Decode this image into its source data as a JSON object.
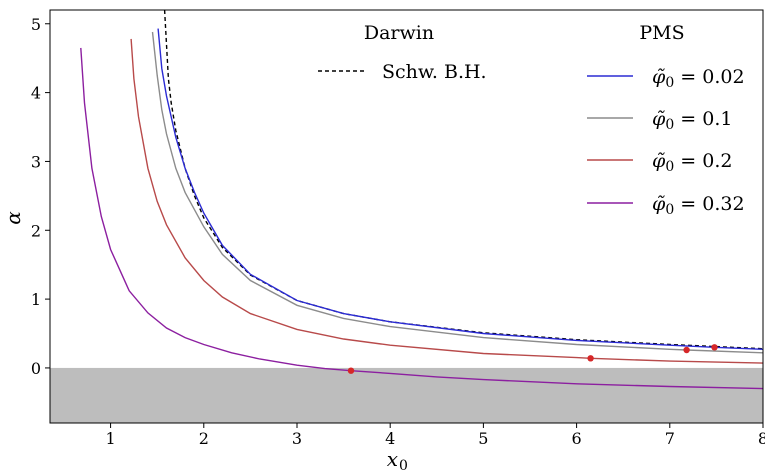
{
  "chart_data": {
    "type": "line",
    "xlabel": "x",
    "xlabel_sub": "0",
    "ylabel": "α",
    "xlim": [
      0.35,
      8.0
    ],
    "ylim": [
      -0.8,
      5.2
    ],
    "xticks": [
      "1",
      "2",
      "3",
      "4",
      "5",
      "6",
      "7",
      "8"
    ],
    "xtick_values": [
      1,
      2,
      3,
      4,
      5,
      6,
      7,
      8
    ],
    "yticks": [
      "0",
      "1",
      "2",
      "3",
      "4",
      "5"
    ],
    "ytick_values": [
      0,
      1,
      2,
      3,
      4,
      5
    ],
    "shaded_region": {
      "y_from": -0.8,
      "y_to": 0,
      "color": "#bdbdbd"
    },
    "grid": false,
    "legend_darwin": {
      "title": "Darwin",
      "placement": "top-center",
      "entries": [
        {
          "label": "Schw. B.H.",
          "color": "#000000",
          "style": "dashed"
        }
      ]
    },
    "legend_pms": {
      "title": "PMS",
      "placement": "top-right",
      "entries": [
        {
          "label": "φ̃",
          "sub": "0",
          "value": " = 0.02",
          "color": "#2b2bd4"
        },
        {
          "label": "φ̃",
          "sub": "0",
          "value": " = 0.1",
          "color": "#8c8c8c"
        },
        {
          "label": "φ̃",
          "sub": "0",
          "value": " = 0.2",
          "color": "#b84a4a"
        },
        {
          "label": "φ̃",
          "sub": "0",
          "value": " = 0.32",
          "color": "#8c1fa0"
        }
      ]
    },
    "series": [
      {
        "color": "#000000",
        "style": "dashed",
        "x": [
          1.58,
          1.62,
          1.65,
          1.7,
          1.8,
          1.9,
          2.0,
          2.2,
          2.5,
          3.0,
          3.5,
          4.0,
          5.0,
          6.0,
          7.0,
          8.0
        ],
        "y": [
          5.2,
          4.2,
          3.85,
          3.45,
          2.9,
          2.5,
          2.18,
          1.75,
          1.35,
          0.98,
          0.79,
          0.67,
          0.51,
          0.41,
          0.34,
          0.28
        ]
      },
      {
        "color": "#2b2bd4",
        "style": "solid",
        "x": [
          1.51,
          1.55,
          1.6,
          1.7,
          1.8,
          1.9,
          2.0,
          2.2,
          2.5,
          3.0,
          3.5,
          4.0,
          5.0,
          6.0,
          7.0,
          7.48,
          8.0
        ],
        "y": [
          4.93,
          4.35,
          3.95,
          3.35,
          2.9,
          2.55,
          2.25,
          1.78,
          1.36,
          0.98,
          0.79,
          0.67,
          0.5,
          0.4,
          0.33,
          0.3,
          0.27
        ],
        "marker": {
          "x": 7.48,
          "y": 0.3
        }
      },
      {
        "color": "#8c8c8c",
        "style": "solid",
        "x": [
          1.45,
          1.5,
          1.55,
          1.6,
          1.7,
          1.8,
          2.0,
          2.2,
          2.5,
          3.0,
          3.5,
          4.0,
          5.0,
          6.0,
          7.0,
          7.18,
          8.0
        ],
        "y": [
          4.88,
          4.25,
          3.75,
          3.4,
          2.9,
          2.55,
          2.05,
          1.65,
          1.27,
          0.91,
          0.72,
          0.6,
          0.44,
          0.34,
          0.27,
          0.26,
          0.22
        ],
        "marker": {
          "x": 7.18,
          "y": 0.26
        }
      },
      {
        "color": "#b84a4a",
        "style": "solid",
        "x": [
          1.22,
          1.25,
          1.3,
          1.4,
          1.5,
          1.6,
          1.8,
          2.0,
          2.2,
          2.5,
          3.0,
          3.5,
          4.0,
          5.0,
          6.0,
          6.15,
          7.0,
          8.0
        ],
        "y": [
          4.78,
          4.2,
          3.65,
          2.9,
          2.42,
          2.08,
          1.6,
          1.27,
          1.03,
          0.79,
          0.56,
          0.42,
          0.33,
          0.21,
          0.15,
          0.14,
          0.1,
          0.07
        ],
        "marker": {
          "x": 6.15,
          "y": 0.14
        }
      },
      {
        "color": "#8c1fa0",
        "style": "solid",
        "x": [
          0.68,
          0.72,
          0.8,
          0.9,
          1.0,
          1.2,
          1.4,
          1.6,
          1.8,
          2.0,
          2.3,
          2.6,
          3.0,
          3.3,
          3.58,
          4.0,
          4.5,
          5.0,
          6.0,
          7.0,
          8.0
        ],
        "y": [
          4.65,
          3.85,
          2.9,
          2.2,
          1.72,
          1.12,
          0.8,
          0.58,
          0.44,
          0.34,
          0.22,
          0.13,
          0.04,
          -0.01,
          -0.04,
          -0.08,
          -0.13,
          -0.17,
          -0.23,
          -0.27,
          -0.3
        ],
        "marker": {
          "x": 3.58,
          "y": -0.04
        }
      }
    ],
    "marker_color": "#d62728"
  }
}
